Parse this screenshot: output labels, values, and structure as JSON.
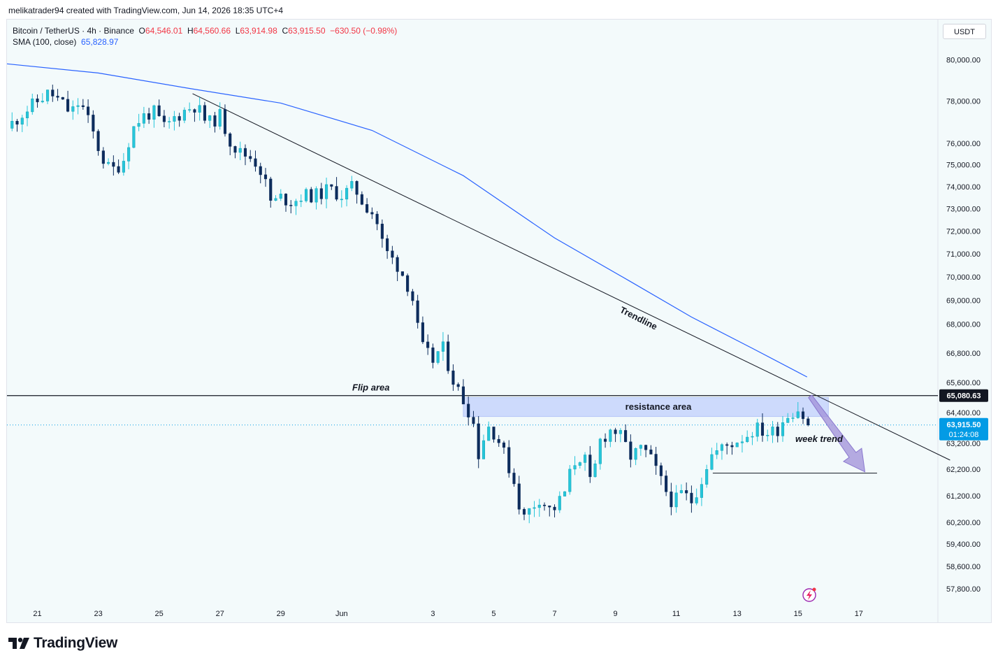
{
  "header": {
    "attribution": "melikatrader94 created with TradingView.com, Jun 14, 2026 18:35 UTC+4"
  },
  "legend": {
    "symbol": "Bitcoin / TetherUS · 4h · Binance",
    "open_label": "O",
    "open": "64,546.01",
    "high_label": "H",
    "high": "64,560.66",
    "low_label": "L",
    "low": "63,914.98",
    "close_label": "C",
    "close": "63,915.50",
    "change": "−630.50 (−0.98%)",
    "indicator_label": "SMA (100, close)",
    "indicator_value": "65,828.97"
  },
  "toolbar": {
    "currency": "USDT"
  },
  "footer": {
    "brand": "TradingView"
  },
  "colors": {
    "up": "#26c6da",
    "down": "#0d2c5c",
    "sma": "#2962ff",
    "resistance_zone": "#c5d3fb",
    "arrow": "#9f8fd8",
    "price_tag": "#039be5"
  },
  "chart_data": {
    "type": "candlestick",
    "symbol": "BTCUSDT",
    "timeframe": "4h",
    "y_scale": "log",
    "ylim": [
      57300,
      82000
    ],
    "y_ticks": [
      "80,000.00",
      "78,000.00",
      "76,000.00",
      "75,000.00",
      "74,000.00",
      "73,000.00",
      "72,000.00",
      "71,000.00",
      "70,000.00",
      "69,000.00",
      "68,000.00",
      "66,800.00",
      "65,600.00",
      "64,400.00",
      "63,200.00",
      "62,200.00",
      "61,200.00",
      "60,200.00",
      "59,400.00",
      "58,600.00",
      "57,800.00"
    ],
    "y_tick_values": [
      80000,
      78000,
      76000,
      75000,
      74000,
      73000,
      72000,
      71000,
      70000,
      69000,
      68000,
      66800,
      65600,
      64400,
      63200,
      62200,
      61200,
      60200,
      59400,
      58600,
      57800
    ],
    "x_ticks": [
      "21",
      "23",
      "25",
      "27",
      "29",
      "Jun",
      "3",
      "5",
      "7",
      "9",
      "11",
      "13",
      "15",
      "17"
    ],
    "x_tick_days": [
      -11,
      -9,
      -7,
      -5,
      -3,
      -1,
      2,
      4,
      6,
      8,
      10,
      12,
      14,
      16
    ],
    "x_range_days": [
      -12.0,
      18.6
    ],
    "anchors": [
      [
        -12.0,
        76700
      ],
      [
        -11.5,
        77400
      ],
      [
        -10.9,
        78100
      ],
      [
        -10.6,
        78400
      ],
      [
        -10.2,
        77900
      ],
      [
        -9.9,
        77400
      ],
      [
        -9.6,
        78000
      ],
      [
        -9.2,
        76600
      ],
      [
        -8.9,
        75400
      ],
      [
        -8.6,
        74700
      ],
      [
        -8.2,
        75100
      ],
      [
        -7.9,
        76600
      ],
      [
        -7.6,
        77200
      ],
      [
        -7.2,
        77500
      ],
      [
        -6.8,
        76700
      ],
      [
        -6.5,
        77200
      ],
      [
        -6.1,
        77600
      ],
      [
        -5.8,
        77800
      ],
      [
        -5.4,
        76900
      ],
      [
        -5.0,
        77300
      ],
      [
        -4.7,
        76200
      ],
      [
        -4.4,
        75600
      ],
      [
        -3.9,
        75300
      ],
      [
        -3.6,
        74600
      ],
      [
        -3.3,
        73200
      ],
      [
        -3.0,
        73500
      ],
      [
        -2.6,
        73300
      ],
      [
        -2.3,
        73600
      ],
      [
        -1.8,
        73600
      ],
      [
        -1.4,
        73900
      ],
      [
        -1.0,
        73600
      ],
      [
        -0.6,
        74000
      ],
      [
        -0.3,
        73300
      ],
      [
        0.1,
        72700
      ],
      [
        0.4,
        71200
      ],
      [
        0.9,
        70400
      ],
      [
        1.3,
        69300
      ],
      [
        1.6,
        67100
      ],
      [
        2.0,
        66500
      ],
      [
        2.3,
        67100
      ],
      [
        2.7,
        65600
      ],
      [
        3.0,
        64900
      ],
      [
        3.3,
        64200
      ],
      [
        3.5,
        62800
      ],
      [
        3.8,
        63900
      ],
      [
        4.1,
        63500
      ],
      [
        4.4,
        62600
      ],
      [
        4.7,
        61600
      ],
      [
        4.95,
        60300
      ],
      [
        5.2,
        60700
      ],
      [
        5.5,
        61100
      ],
      [
        5.9,
        60600
      ],
      [
        6.3,
        61200
      ],
      [
        6.6,
        62400
      ],
      [
        6.95,
        62800
      ],
      [
        7.2,
        61500
      ],
      [
        7.5,
        63300
      ],
      [
        7.9,
        63800
      ],
      [
        8.2,
        63400
      ],
      [
        8.5,
        62700
      ],
      [
        8.9,
        63000
      ],
      [
        9.2,
        62500
      ],
      [
        9.6,
        61500
      ],
      [
        9.9,
        60900
      ],
      [
        10.2,
        61300
      ],
      [
        10.5,
        61000
      ],
      [
        10.8,
        61700
      ],
      [
        11.1,
        62700
      ],
      [
        11.5,
        63000
      ],
      [
        11.8,
        63200
      ],
      [
        12.3,
        63500
      ],
      [
        12.6,
        63800
      ],
      [
        13.0,
        63600
      ],
      [
        13.3,
        63700
      ],
      [
        13.6,
        64300
      ],
      [
        14.0,
        64550
      ],
      [
        14.35,
        63915
      ]
    ],
    "sma_100": [
      [
        -12.0,
        79800
      ],
      [
        -9.0,
        79350
      ],
      [
        -6.0,
        78600
      ],
      [
        -3.0,
        77900
      ],
      [
        0.0,
        76600
      ],
      [
        3.0,
        74500
      ],
      [
        6.0,
        71700
      ],
      [
        8.5,
        69800
      ],
      [
        10.5,
        68300
      ],
      [
        12.5,
        67000
      ],
      [
        14.3,
        65829
      ]
    ],
    "flip_level": 65080.63,
    "flip_tag": "65,080.63",
    "resistance_zone": [
      64250,
      65000
    ],
    "resistance_days": [
      3.0,
      15.0
    ],
    "trendline": [
      [
        -5.9,
        78350
      ],
      [
        19.0,
        62550
      ]
    ],
    "support_line": {
      "price": 62050,
      "days": [
        11.2,
        16.6
      ]
    },
    "arrow": {
      "from": [
        14.4,
        65050
      ],
      "to": [
        16.2,
        62100
      ]
    },
    "last_price": 63915.5,
    "last_price_tag": "63,915.50",
    "countdown": "01:24:08",
    "annotations": {
      "flip": "Flip area",
      "resistance": "resistance area",
      "trendline": "Trendline",
      "week_trend": "week trend"
    }
  }
}
